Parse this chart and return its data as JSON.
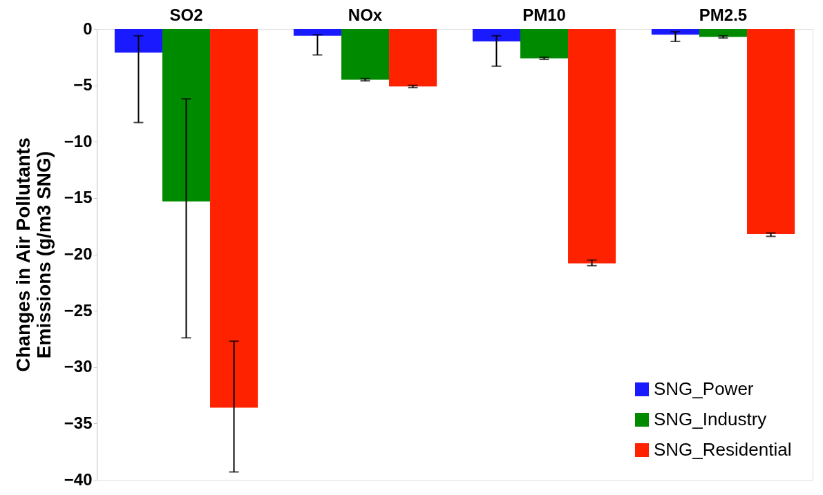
{
  "chart_data": {
    "type": "bar",
    "ylabel": "Changes in Air Pollutants\nEmissions (g/m3 SNG)",
    "categories": [
      "SO2",
      "NOx",
      "PM10",
      "PM2.5"
    ],
    "series": [
      {
        "name": "SNG_Power",
        "color": "#1a1aff",
        "values": [
          -2.1,
          -0.6,
          -1.1,
          -0.5
        ],
        "errors": [
          [
            -8.3,
            -0.6
          ],
          [
            -2.3,
            -0.5
          ],
          [
            -3.3,
            -0.6
          ],
          [
            -1.1,
            -0.25
          ]
        ]
      },
      {
        "name": "SNG_Industry",
        "color": "#008a00",
        "values": [
          -15.3,
          -4.5,
          -2.6,
          -0.7
        ],
        "errors": [
          [
            -27.4,
            -6.2
          ],
          [
            -4.6,
            -4.4
          ],
          [
            -2.7,
            -2.5
          ],
          [
            -0.8,
            -0.6
          ]
        ]
      },
      {
        "name": "SNG_Residential",
        "color": "#ff2200",
        "values": [
          -33.6,
          -5.1,
          -20.8,
          -18.2
        ],
        "errors": [
          [
            -39.3,
            -27.7
          ],
          [
            -5.2,
            -5.0
          ],
          [
            -21.0,
            -20.5
          ],
          [
            -18.4,
            -18.1
          ]
        ]
      }
    ],
    "ylim": [
      -40,
      0
    ],
    "yticks": [
      0,
      -5,
      -10,
      -15,
      -20,
      -25,
      -30,
      -35,
      -40
    ],
    "grid": false,
    "legend": "bottom right"
  }
}
